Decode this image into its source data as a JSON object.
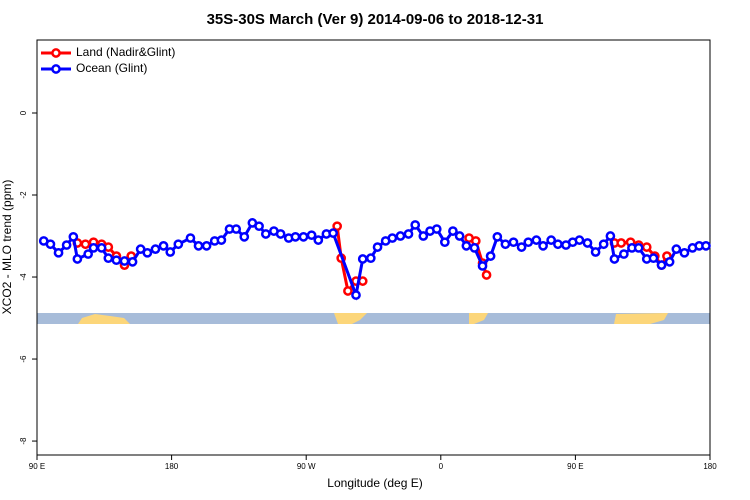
{
  "chart_data": {
    "type": "line",
    "title": "35S-30S March (Ver 9)   2014-09-06 to 2018-12-31",
    "x_label": "Longitude (deg E)",
    "y_label": "XCO2 - MLO trend (ppm)",
    "xlim": [
      0,
      5
    ],
    "xticks": [
      {
        "value": 0,
        "label": "90 E"
      },
      {
        "value": 1,
        "label": "180"
      },
      {
        "value": 2,
        "label": "90 W"
      },
      {
        "value": 3,
        "label": "0"
      },
      {
        "value": 4,
        "label": "90 E"
      },
      {
        "value": 5,
        "label": "180"
      }
    ],
    "ylim": [
      -8.34,
      1.78
    ],
    "yticks": [
      0,
      -2,
      -4,
      -6,
      -8
    ],
    "legend": "top-left",
    "series": [
      {
        "name": "Land (Nadir&Glint)",
        "color": "#ff0000",
        "x": [
          0.3,
          0.36,
          0.42,
          0.48,
          0.53,
          0.59,
          0.65,
          0.7,
          null,
          2.23,
          2.26,
          2.31,
          2.37,
          2.42,
          null,
          3.21,
          3.26,
          3.31,
          3.34,
          null,
          4.29,
          4.34,
          4.41,
          4.47,
          4.53,
          4.59,
          4.64,
          4.68
        ],
        "values": [
          -3.17,
          -3.2,
          -3.15,
          -3.2,
          -3.27,
          -3.49,
          -3.71,
          -3.49,
          null,
          -2.76,
          -3.54,
          -4.34,
          -4.1,
          -4.1,
          null,
          -3.05,
          -3.12,
          -3.66,
          -3.95,
          null,
          -3.17,
          -3.17,
          -3.15,
          -3.22,
          -3.27,
          -3.49,
          -3.71,
          -3.49
        ]
      },
      {
        "name": "Ocean (Glint)",
        "color": "#0000ff",
        "x": [
          0.05,
          0.1,
          0.16,
          0.22,
          0.27,
          0.3,
          0.38,
          0.42,
          0.48,
          0.53,
          0.59,
          0.65,
          0.71,
          0.77,
          0.82,
          0.88,
          0.94,
          0.99,
          1.05,
          1.14,
          1.2,
          1.26,
          1.32,
          1.37,
          1.43,
          1.48,
          1.54,
          1.6,
          1.65,
          1.7,
          1.76,
          1.81,
          1.87,
          1.92,
          1.98,
          2.04,
          2.09,
          2.15,
          2.2,
          2.37,
          2.42,
          2.48,
          2.53,
          2.59,
          2.64,
          2.7,
          2.76,
          2.81,
          2.87,
          2.92,
          2.97,
          3.03,
          3.09,
          3.14,
          3.19,
          3.25,
          3.31,
          3.37,
          3.42,
          3.48,
          3.54,
          3.6,
          3.65,
          3.71,
          3.76,
          3.82,
          3.87,
          3.93,
          3.98,
          4.03,
          4.09,
          4.15,
          4.21,
          4.26,
          4.29,
          4.36,
          4.42,
          4.47,
          4.53,
          4.58,
          4.64,
          4.7,
          4.75,
          4.81,
          4.87,
          4.92,
          4.97
        ],
        "values": [
          -3.12,
          -3.2,
          -3.41,
          -3.22,
          -3.02,
          -3.56,
          -3.44,
          -3.29,
          -3.29,
          -3.54,
          -3.59,
          -3.61,
          -3.63,
          -3.32,
          -3.41,
          -3.32,
          -3.24,
          -3.39,
          -3.2,
          -3.05,
          -3.24,
          -3.24,
          -3.12,
          -3.1,
          -2.83,
          -2.83,
          -3.02,
          -2.68,
          -2.76,
          -2.95,
          -2.88,
          -2.95,
          -3.05,
          -3.02,
          -3.02,
          -2.98,
          -3.1,
          -2.95,
          -2.93,
          -4.44,
          -3.56,
          -3.54,
          -3.27,
          -3.12,
          -3.05,
          -3.0,
          -2.95,
          -2.73,
          -3.0,
          -2.88,
          -2.83,
          -3.15,
          -2.88,
          -3.0,
          -3.24,
          -3.29,
          -3.73,
          -3.49,
          -3.02,
          -3.2,
          -3.15,
          -3.27,
          -3.15,
          -3.1,
          -3.24,
          -3.1,
          -3.2,
          -3.22,
          -3.15,
          -3.1,
          -3.17,
          -3.39,
          -3.2,
          -3.0,
          -3.56,
          -3.44,
          -3.29,
          -3.29,
          -3.56,
          -3.54,
          -3.71,
          -3.63,
          -3.32,
          -3.41,
          -3.29,
          -3.24,
          -3.24
        ]
      }
    ]
  }
}
